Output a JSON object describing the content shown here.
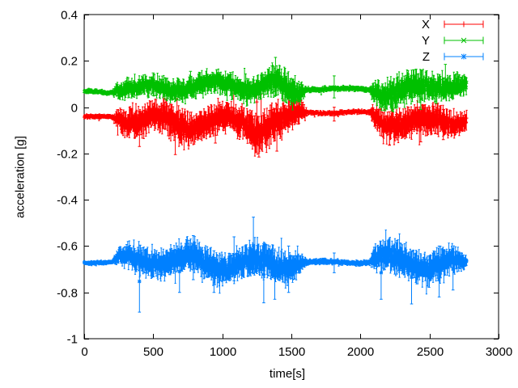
{
  "figure": {
    "background": "#ffffff",
    "axis_color": "#000000",
    "text_color": "#000000"
  },
  "chart_data": {
    "type": "line",
    "style": "errorbars-with-markers",
    "title": "",
    "xlabel": "time[s]",
    "ylabel": "acceleration [g]",
    "xlim": [
      0,
      3000
    ],
    "ylim": [
      -1,
      0.4
    ],
    "xticks": [
      0,
      500,
      1000,
      1500,
      2000,
      2500,
      3000
    ],
    "xtick_labels": [
      "0",
      "500",
      "1000",
      "1500",
      "2000",
      "2500",
      "3000"
    ],
    "yticks": [
      0.4,
      0.2,
      0,
      -0.2,
      -0.4,
      -0.6,
      -0.8,
      -1
    ],
    "ytick_labels": [
      "0.4",
      "0.2",
      "0",
      "-0.2",
      "-0.4",
      "-0.6",
      "-0.8",
      "-1"
    ],
    "grid": false,
    "legend": {
      "position": "top-right-inside",
      "entries": [
        "X",
        "Y",
        "Z"
      ]
    },
    "time_range": [
      0,
      2770
    ],
    "quiet_intervals": [
      [
        0,
        205
      ],
      [
        1615,
        2065
      ]
    ],
    "series": [
      {
        "name": "X",
        "color": "#ff0000",
        "marker": "plus",
        "description": "noisy band around -0.05 g, flat near -0.045 g before t=205 and -0.025 g during 1615-2065, bursts reaching -0.2 g",
        "envelope": [
          [
            0,
            -0.045,
            0.008
          ],
          [
            205,
            -0.045,
            0.008
          ],
          [
            245,
            -0.05,
            0.035
          ],
          [
            330,
            -0.055,
            0.05
          ],
          [
            420,
            -0.065,
            0.055
          ],
          [
            520,
            -0.05,
            0.045
          ],
          [
            620,
            -0.07,
            0.062
          ],
          [
            720,
            -0.065,
            0.058
          ],
          [
            820,
            -0.055,
            0.05
          ],
          [
            950,
            -0.05,
            0.048
          ],
          [
            1050,
            -0.055,
            0.05
          ],
          [
            1150,
            -0.06,
            0.055
          ],
          [
            1250,
            -0.08,
            0.068
          ],
          [
            1340,
            -0.075,
            0.065
          ],
          [
            1430,
            -0.065,
            0.062
          ],
          [
            1530,
            -0.05,
            0.05
          ],
          [
            1595,
            -0.035,
            0.025
          ],
          [
            1615,
            -0.025,
            0.008
          ],
          [
            2065,
            -0.025,
            0.008
          ],
          [
            2100,
            -0.05,
            0.04
          ],
          [
            2200,
            -0.06,
            0.052
          ],
          [
            2300,
            -0.05,
            0.05
          ],
          [
            2400,
            -0.055,
            0.05
          ],
          [
            2500,
            -0.06,
            0.052
          ],
          [
            2600,
            -0.05,
            0.045
          ],
          [
            2700,
            -0.045,
            0.04
          ],
          [
            2770,
            -0.035,
            0.03
          ]
        ],
        "spikes": [
          [
            400,
            -0.17,
            -0.02
          ],
          [
            660,
            -0.205,
            -0.03
          ],
          [
            950,
            -0.155,
            -0.03
          ],
          [
            1250,
            -0.06,
            0.105
          ],
          [
            1265,
            -0.215,
            -0.04
          ],
          [
            1395,
            -0.19,
            -0.01
          ],
          [
            1810,
            -0.06,
            0.0
          ],
          [
            2210,
            -0.165,
            -0.02
          ],
          [
            2437,
            -0.15,
            -0.01
          ],
          [
            2600,
            -0.14,
            -0.01
          ]
        ]
      },
      {
        "name": "Y",
        "color": "#00c000",
        "marker": "cross",
        "description": "noisy band around +0.085 g, flat near 0.068 g before t=205 and 0.08 g during 1615-2065, spikes up to 0.215 g near t=1385",
        "envelope": [
          [
            0,
            0.068,
            0.008
          ],
          [
            205,
            0.068,
            0.008
          ],
          [
            240,
            0.09,
            0.028
          ],
          [
            350,
            0.085,
            0.032
          ],
          [
            500,
            0.088,
            0.035
          ],
          [
            650,
            0.09,
            0.038
          ],
          [
            800,
            0.085,
            0.037
          ],
          [
            950,
            0.088,
            0.038
          ],
          [
            1100,
            0.085,
            0.04
          ],
          [
            1250,
            0.08,
            0.044
          ],
          [
            1360,
            0.09,
            0.048
          ],
          [
            1480,
            0.055,
            0.055
          ],
          [
            1560,
            0.07,
            0.04
          ],
          [
            1615,
            0.08,
            0.009
          ],
          [
            2065,
            0.08,
            0.009
          ],
          [
            2100,
            0.085,
            0.038
          ],
          [
            2200,
            0.075,
            0.048
          ],
          [
            2300,
            0.07,
            0.052
          ],
          [
            2400,
            0.075,
            0.05
          ],
          [
            2500,
            0.088,
            0.045
          ],
          [
            2600,
            0.09,
            0.044
          ],
          [
            2700,
            0.09,
            0.04
          ],
          [
            2770,
            0.085,
            0.028
          ]
        ],
        "spikes": [
          [
            500,
            0.05,
            0.148
          ],
          [
            770,
            0.05,
            0.155
          ],
          [
            1060,
            0.05,
            0.15
          ],
          [
            1360,
            0.06,
            0.178
          ],
          [
            1385,
            0.05,
            0.215
          ],
          [
            1810,
            0.04,
            0.135
          ],
          [
            2160,
            0.0,
            0.1
          ],
          [
            2260,
            -0.005,
            0.09
          ],
          [
            2437,
            -0.01,
            0.08
          ],
          [
            2615,
            0.05,
            0.185
          ]
        ]
      },
      {
        "name": "Z",
        "color": "#0080ff",
        "marker": "asterisk",
        "description": "noisy band around -0.67 g (gravity axis), flat near -0.672 g before t=205 and during 1615-2065, long excursions -0.885 g (t=400) and -0.475 g (t=1225)",
        "envelope": [
          [
            0,
            -0.672,
            0.007
          ],
          [
            205,
            -0.672,
            0.007
          ],
          [
            245,
            -0.668,
            0.028
          ],
          [
            330,
            -0.665,
            0.04
          ],
          [
            430,
            -0.67,
            0.048
          ],
          [
            550,
            -0.662,
            0.047
          ],
          [
            700,
            -0.658,
            0.05
          ],
          [
            820,
            -0.652,
            0.053
          ],
          [
            950,
            -0.668,
            0.05
          ],
          [
            1080,
            -0.66,
            0.053
          ],
          [
            1200,
            -0.668,
            0.056
          ],
          [
            1300,
            -0.672,
            0.058
          ],
          [
            1420,
            -0.675,
            0.056
          ],
          [
            1540,
            -0.668,
            0.048
          ],
          [
            1615,
            -0.672,
            0.009
          ],
          [
            2065,
            -0.672,
            0.009
          ],
          [
            2100,
            -0.665,
            0.042
          ],
          [
            2250,
            -0.67,
            0.056
          ],
          [
            2380,
            -0.668,
            0.053
          ],
          [
            2500,
            -0.665,
            0.053
          ],
          [
            2600,
            -0.67,
            0.053
          ],
          [
            2680,
            -0.665,
            0.042
          ],
          [
            2740,
            -0.668,
            0.028
          ],
          [
            2770,
            -0.67,
            0.018
          ]
        ],
        "spikes": [
          [
            400,
            -0.885,
            -0.62
          ],
          [
            690,
            -0.8,
            -0.62
          ],
          [
            790,
            -0.745,
            -0.555
          ],
          [
            940,
            -0.8,
            -0.62
          ],
          [
            1085,
            -0.75,
            -0.56
          ],
          [
            1225,
            -0.72,
            -0.475
          ],
          [
            1300,
            -0.845,
            -0.6
          ],
          [
            1380,
            -0.83,
            -0.62
          ],
          [
            1480,
            -0.8,
            -0.6
          ],
          [
            1810,
            -0.715,
            -0.63
          ],
          [
            2150,
            -0.83,
            -0.6
          ],
          [
            2370,
            -0.85,
            -0.62
          ],
          [
            2570,
            -0.82,
            -0.6
          ],
          [
            2670,
            -0.79,
            -0.61
          ]
        ]
      }
    ]
  }
}
